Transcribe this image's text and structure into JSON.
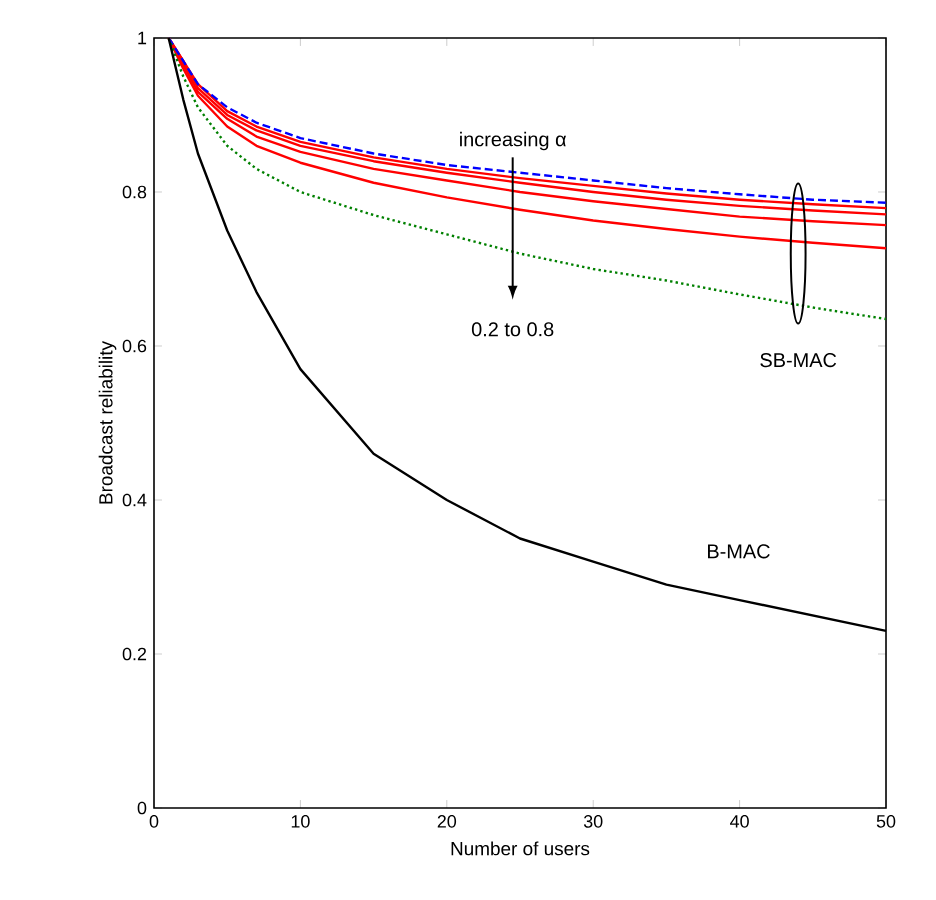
{
  "chart_data": {
    "type": "line",
    "xlabel": "Number of users",
    "ylabel": "Broadcast reliability",
    "x": [
      1,
      2,
      3,
      5,
      7,
      10,
      15,
      20,
      25,
      30,
      35,
      40,
      45,
      50
    ],
    "xlim": [
      0,
      50
    ],
    "ylim": [
      0,
      1
    ],
    "xticks": [
      0,
      10,
      20,
      30,
      40,
      50
    ],
    "yticks": [
      0,
      0.2,
      0.4,
      0.6,
      0.8,
      1
    ],
    "grid": false,
    "legend": false,
    "marker": "none",
    "series": [
      {
        "color": "#ff0000",
        "line_style": "solid",
        "values": [
          1,
          0.97,
          0.94,
          0.905,
          0.885,
          0.865,
          0.845,
          0.83,
          0.818,
          0.808,
          0.798,
          0.79,
          0.784,
          0.779
        ]
      },
      {
        "color": "#ff0000",
        "line_style": "solid",
        "values": [
          1,
          0.97,
          0.935,
          0.9,
          0.88,
          0.86,
          0.84,
          0.825,
          0.812,
          0.8,
          0.79,
          0.782,
          0.776,
          0.771
        ]
      },
      {
        "color": "#ff0000",
        "line_style": "solid",
        "values": [
          1,
          0.965,
          0.93,
          0.895,
          0.872,
          0.852,
          0.83,
          0.815,
          0.8,
          0.788,
          0.778,
          0.768,
          0.762,
          0.757
        ]
      },
      {
        "color": "#ff0000",
        "line_style": "solid",
        "values": [
          1,
          0.96,
          0.925,
          0.885,
          0.86,
          0.838,
          0.812,
          0.793,
          0.777,
          0.763,
          0.752,
          0.742,
          0.734,
          0.727
        ]
      },
      {
        "color": "#0000ff",
        "line_style": "dashed",
        "values": [
          1,
          0.97,
          0.94,
          0.91,
          0.89,
          0.87,
          0.85,
          0.835,
          0.825,
          0.815,
          0.805,
          0.797,
          0.79,
          0.786
        ]
      },
      {
        "color": "#008000",
        "line_style": "dotted",
        "values": [
          1,
          0.95,
          0.91,
          0.86,
          0.83,
          0.8,
          0.77,
          0.745,
          0.72,
          0.7,
          0.685,
          0.667,
          0.65,
          0.635
        ]
      },
      {
        "name": "B-MAC",
        "color": "#000000",
        "line_style": "solid",
        "values": [
          1,
          0.92,
          0.85,
          0.75,
          0.67,
          0.57,
          0.46,
          0.4,
          0.35,
          0.32,
          0.29,
          0.27,
          0.25,
          0.23
        ]
      }
    ],
    "annotations": [
      "increasing α",
      "0.2 to 0.8",
      "SB-MAC"
    ]
  }
}
